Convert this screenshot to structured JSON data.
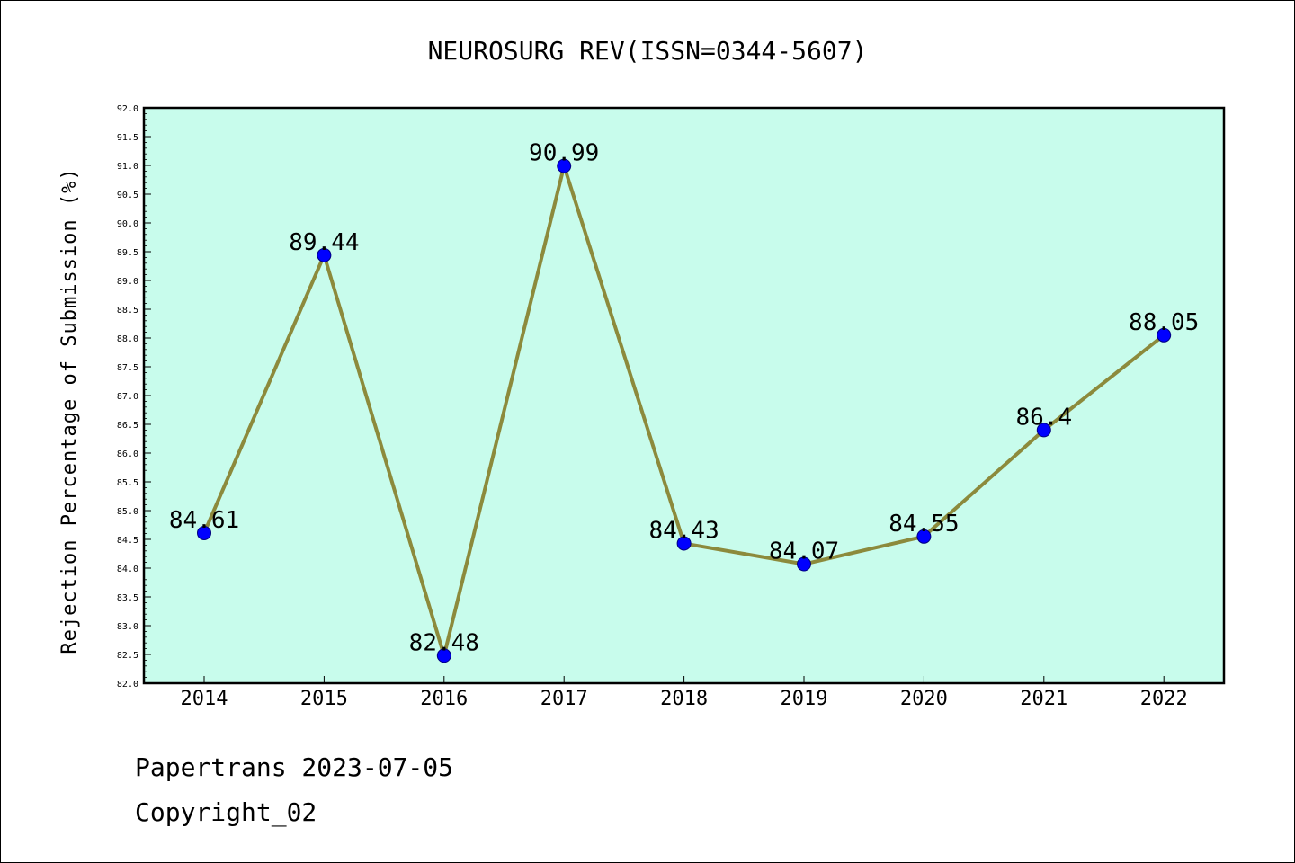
{
  "chart_data": {
    "type": "line",
    "title": "NEUROSURG REV(ISSN=0344-5607)",
    "xlabel": "",
    "ylabel": "Rejection Percentage of Submission (%)",
    "x": [
      "2014",
      "2015",
      "2016",
      "2017",
      "2018",
      "2019",
      "2020",
      "2021",
      "2022"
    ],
    "series": [
      {
        "values": [
          84.61,
          89.44,
          82.48,
          90.99,
          84.43,
          84.07,
          84.55,
          86.4,
          88.05
        ],
        "data_labels": [
          "84.61",
          "89.44",
          "82.48",
          "90.99",
          "84.43",
          "84.07",
          "84.55",
          "86.4",
          "88.05"
        ]
      }
    ],
    "ylim": [
      82.0,
      92.0
    ],
    "yticks": [
      "82.0",
      "82.5",
      "83.0",
      "83.5",
      "84.0",
      "84.5",
      "85.0",
      "85.5",
      "86.0",
      "86.5",
      "87.0",
      "87.5",
      "88.0",
      "88.5",
      "89.0",
      "89.5",
      "90.0",
      "90.5",
      "91.0",
      "91.5",
      "92.0"
    ],
    "grid": false,
    "colors": {
      "plot_background": "#c8fcec",
      "line": "#8c8a3c",
      "marker": "#0000ff",
      "marker_edge": "#000080"
    }
  },
  "footer": {
    "line1": "Papertrans 2023-07-05",
    "line2": "Copyright_02"
  }
}
